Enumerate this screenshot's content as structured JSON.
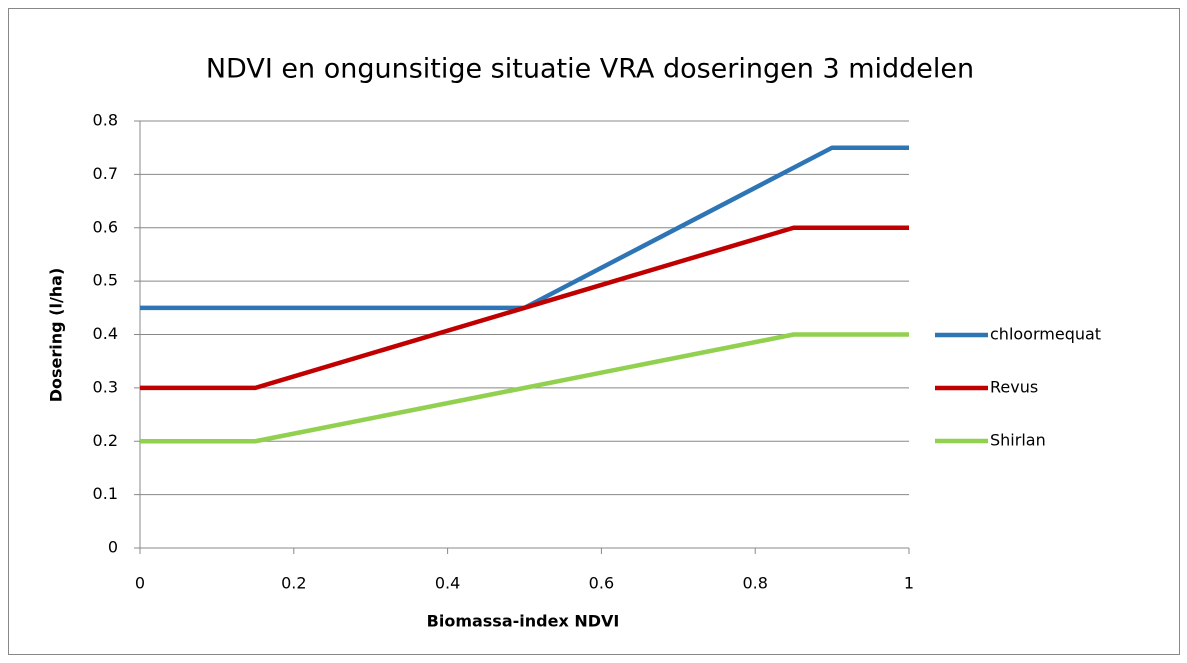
{
  "chart_data": {
    "type": "line",
    "title": "NDVI en ongunsitige situatie VRA doseringen 3 middelen",
    "x_label": "Biomassa-index NDVI",
    "y_label": "Dosering (l/ha)",
    "series": [
      {
        "name": "chloormequat",
        "color": "#2e75b6",
        "x": [
          0,
          0.5,
          0.9,
          1
        ],
        "values": [
          0.45,
          0.45,
          0.75,
          0.75
        ]
      },
      {
        "name": "Revus",
        "color": "#c00000",
        "x": [
          0,
          0.15,
          0.85,
          1
        ],
        "values": [
          0.3,
          0.3,
          0.6,
          0.6
        ]
      },
      {
        "name": "Shirlan",
        "color": "#92d050",
        "x": [
          0,
          0.15,
          0.85,
          1
        ],
        "values": [
          0.2,
          0.2,
          0.4,
          0.4
        ]
      }
    ],
    "xlim": [
      0,
      1
    ],
    "xticks": [
      0,
      0.2,
      0.4,
      0.6,
      0.8,
      1
    ],
    "ylim": [
      0,
      0.8
    ],
    "yticks": [
      0,
      0.1,
      0.2,
      0.3,
      0.4,
      0.5,
      0.6,
      0.7,
      0.8
    ],
    "grid": true,
    "legend": "right"
  }
}
